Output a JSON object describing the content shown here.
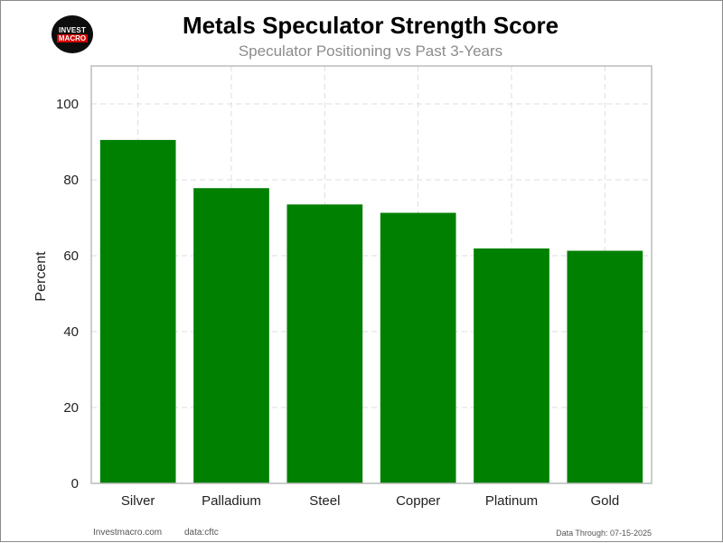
{
  "header": {
    "logo_line1": "INVEST",
    "logo_line2": "MACRO",
    "title": "Metals Speculator Strength Score",
    "subtitle": "Speculator Positioning vs Past 3-Years"
  },
  "footer": {
    "site": "Investmacro.com",
    "source": "data:cftc",
    "data_through": "Data Through: 07-15-2025"
  },
  "colors": {
    "bar": "#008000",
    "grid": "#dddddd",
    "axis": "#bbbbbb"
  },
  "chart_data": {
    "type": "bar",
    "title": "Metals Speculator Strength Score",
    "subtitle": "Speculator Positioning vs Past 3-Years",
    "xlabel": "",
    "ylabel": "Percent",
    "categories": [
      "Silver",
      "Palladium",
      "Steel",
      "Copper",
      "Platinum",
      "Gold"
    ],
    "values": [
      90.5,
      77.8,
      73.5,
      71.3,
      61.9,
      61.3
    ],
    "ylim": [
      0,
      110
    ],
    "yticks": [
      0,
      20,
      40,
      60,
      80,
      100
    ],
    "grid": true,
    "grid_style": "dashed"
  }
}
